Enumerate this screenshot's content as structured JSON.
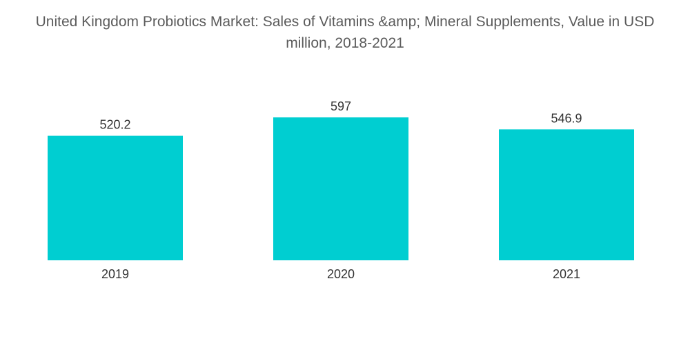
{
  "chart_data": {
    "type": "bar",
    "title_line1": "United Kingdom Probiotics Market: Sales of Vitamins &amp; Mineral Supplements, Value in USD",
    "title_line2": "million, 2018-2021",
    "categories": [
      "2019",
      "2020",
      "2021"
    ],
    "values": [
      520.2,
      597,
      546.9
    ],
    "value_labels": [
      "520.2",
      "597",
      "546.9"
    ],
    "xlabel": "",
    "ylabel": "",
    "ylim": [
      0,
      597
    ],
    "grid": false,
    "legend": "none",
    "bar_color": "#00ced1"
  }
}
